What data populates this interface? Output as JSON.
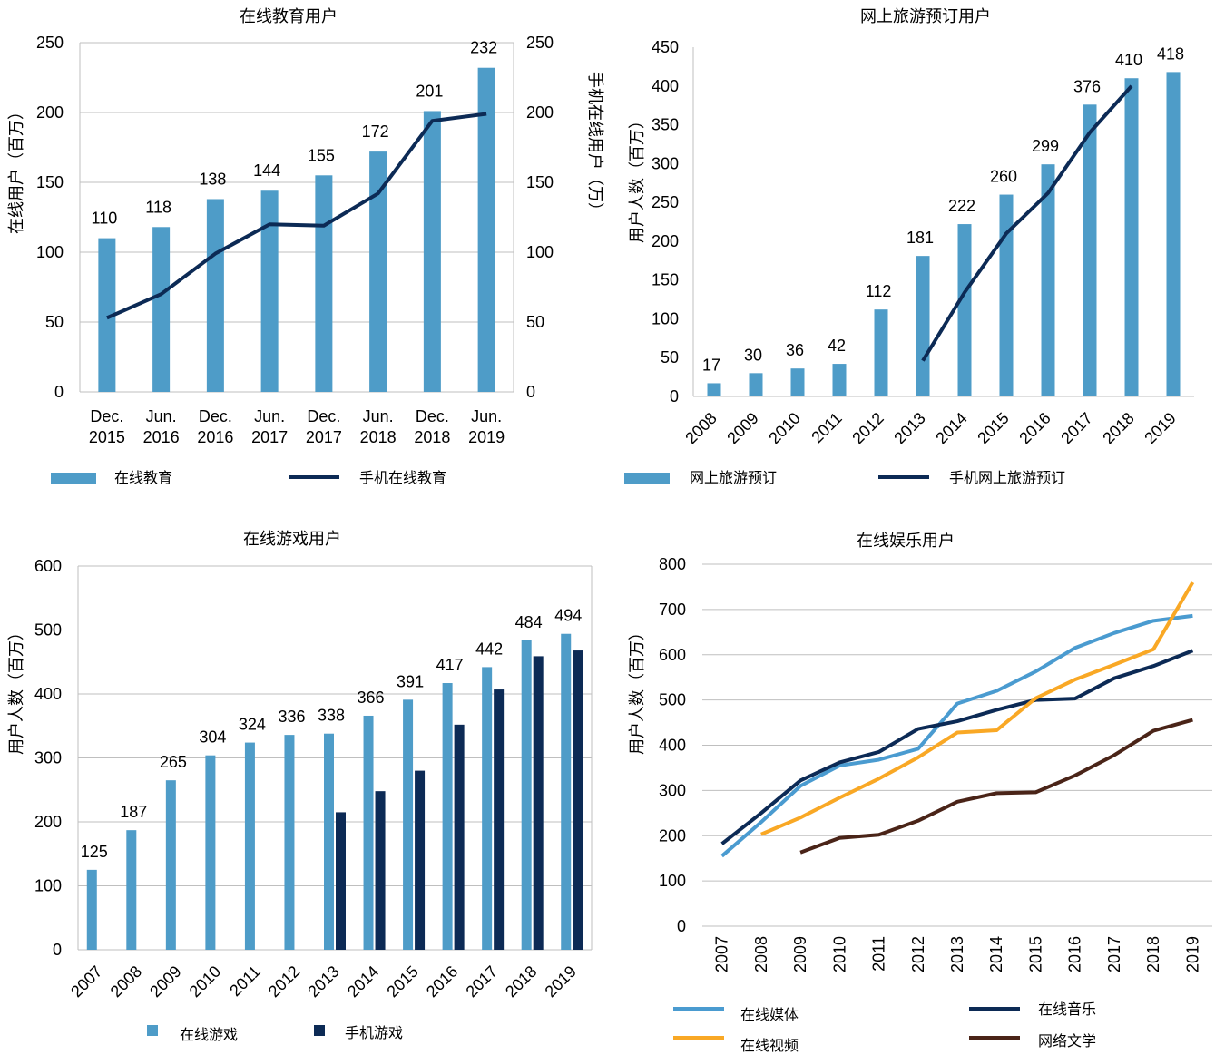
{
  "colors": {
    "light_blue": "#4e9cc8",
    "dark_navy": "#0c2a55",
    "media_blue": "#4a9bd0",
    "video_orange": "#f9a825",
    "music_navy": "#0c2a55",
    "literature_brown": "#4a2418",
    "grid": "#bfbfbf"
  },
  "chart_data": [
    {
      "type": "bar",
      "title": "在线教育用户",
      "ylabel": "在线用户（百万）",
      "y2label": "手机在线用户（万）",
      "categories": [
        [
          "Dec.",
          "2015"
        ],
        [
          "Jun.",
          "2016"
        ],
        [
          "Dec.",
          "2016"
        ],
        [
          "Jun.",
          "2017"
        ],
        [
          "Dec.",
          "2017"
        ],
        [
          "Jun.",
          "2018"
        ],
        [
          "Dec.",
          "2018"
        ],
        [
          "Jun.",
          "2019"
        ]
      ],
      "ylim": [
        0,
        250
      ],
      "yticks": [
        0,
        50,
        100,
        150,
        200,
        250
      ],
      "y2ticks": [
        0,
        50,
        100,
        150,
        200,
        250
      ],
      "grid": "horizontal",
      "legend_position": "bottom",
      "series": [
        {
          "name": "在线教育",
          "kind": "bar",
          "color": "#4e9cc8",
          "values": [
            110,
            118,
            138,
            144,
            155,
            172,
            201,
            232
          ],
          "labels": [
            "110",
            "118",
            "138",
            "144",
            "155",
            "172",
            "201",
            "232"
          ]
        },
        {
          "name": "手机在线教育",
          "kind": "line",
          "color": "#0c2a55",
          "values": [
            53,
            70,
            99,
            120,
            119,
            142,
            194,
            199
          ]
        }
      ]
    },
    {
      "type": "bar",
      "title": "网上旅游预订用户",
      "ylabel": "用户人数（百万）",
      "categories": [
        "2008",
        "2009",
        "2010",
        "2011",
        "2012",
        "2013",
        "2014",
        "2015",
        "2016",
        "2017",
        "2018",
        "2019"
      ],
      "ylim": [
        0,
        450
      ],
      "yticks": [
        0,
        50,
        100,
        150,
        200,
        250,
        300,
        350,
        400,
        450
      ],
      "grid": "none",
      "legend_position": "bottom",
      "series": [
        {
          "name": "网上旅游预订",
          "kind": "bar",
          "color": "#4e9cc8",
          "values": [
            17,
            30,
            36,
            42,
            112,
            181,
            222,
            260,
            299,
            376,
            410,
            418
          ],
          "labels": [
            "17",
            "30",
            "36",
            "42",
            "112",
            "181",
            "222",
            "260",
            "299",
            "376",
            "410",
            "418"
          ]
        },
        {
          "name": "手机网上旅游预订",
          "kind": "line",
          "color": "#0c2a55",
          "values": [
            null,
            null,
            null,
            null,
            null,
            46,
            134,
            210,
            262,
            340,
            400,
            null
          ]
        }
      ]
    },
    {
      "type": "bar",
      "title": "在线游戏用户",
      "ylabel": "用户人数（百万）",
      "categories": [
        "2007",
        "2008",
        "2009",
        "2010",
        "2011",
        "2012",
        "2013",
        "2014",
        "2015",
        "2016",
        "2017",
        "2018",
        "2019"
      ],
      "ylim": [
        0,
        600
      ],
      "yticks": [
        0,
        100,
        200,
        300,
        400,
        500,
        600
      ],
      "grid": "horizontal",
      "legend_position": "bottom",
      "series": [
        {
          "name": "在线游戏",
          "kind": "bar",
          "color": "#4e9cc8",
          "values": [
            125,
            187,
            265,
            304,
            324,
            336,
            338,
            366,
            391,
            417,
            442,
            484,
            494
          ],
          "labels": [
            "125",
            "187",
            "265",
            "304",
            "324",
            "336",
            "338",
            "366",
            "391",
            "417",
            "442",
            "484",
            "494"
          ]
        },
        {
          "name": "手机游戏",
          "kind": "bar",
          "color": "#0c2a55",
          "values": [
            null,
            null,
            null,
            null,
            null,
            null,
            215,
            248,
            280,
            352,
            407,
            459,
            468
          ]
        }
      ]
    },
    {
      "type": "line",
      "title": "在线娱乐用户",
      "ylabel": "用户人数（百万）",
      "categories": [
        "2007",
        "2008",
        "2009",
        "2010",
        "2011",
        "2012",
        "2013",
        "2014",
        "2015",
        "2016",
        "2017",
        "2018",
        "2019"
      ],
      "ylim": [
        0,
        800
      ],
      "yticks": [
        0,
        100,
        200,
        300,
        400,
        500,
        600,
        700,
        800
      ],
      "grid": "horizontal",
      "legend_position": "bottom",
      "series": [
        {
          "name": "在线媒体",
          "color": "#4a9bd0",
          "values": [
            155,
            230,
            310,
            355,
            368,
            392,
            492,
            520,
            563,
            615,
            648,
            675,
            686
          ]
        },
        {
          "name": "在线音乐",
          "color": "#0c2a55",
          "values": [
            182,
            250,
            322,
            362,
            385,
            436,
            453,
            478,
            500,
            503,
            548,
            575,
            609
          ]
        },
        {
          "name": "在线视频",
          "color": "#f9a825",
          "values": [
            null,
            203,
            240,
            284,
            326,
            373,
            428,
            433,
            504,
            545,
            578,
            612,
            760
          ]
        },
        {
          "name": "网络文学",
          "color": "#4a2418",
          "values": [
            null,
            null,
            163,
            195,
            202,
            233,
            275,
            294,
            296,
            333,
            378,
            432,
            456
          ]
        }
      ]
    }
  ]
}
